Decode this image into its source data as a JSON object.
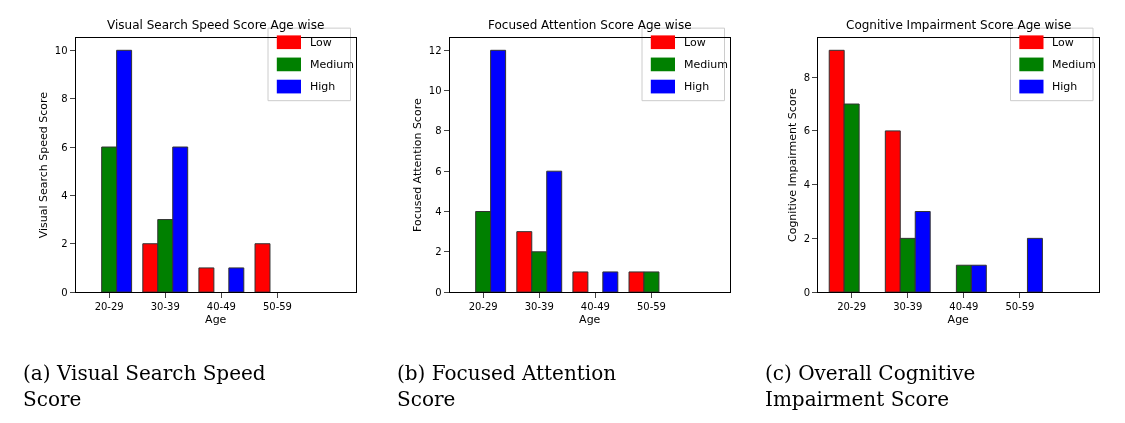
{
  "chart_data": [
    {
      "type": "bar",
      "title": "Visual Search Speed Score Age wise",
      "xlabel": "Age",
      "ylabel": "Visual Search Speed Score",
      "categories": [
        "20-29",
        "30-39",
        "40-49",
        "50-59"
      ],
      "series": [
        {
          "name": "Low",
          "color": "#ff0000",
          "values": [
            0,
            2,
            1,
            2
          ]
        },
        {
          "name": "Medium",
          "color": "#008000",
          "values": [
            6,
            3,
            0,
            0
          ]
        },
        {
          "name": "High",
          "color": "#0000ff",
          "values": [
            10,
            6,
            1,
            0
          ]
        }
      ],
      "ylim": [
        0,
        10.5
      ],
      "yticks": [
        0,
        2,
        4,
        6,
        8,
        10
      ],
      "legend": "top right",
      "grid": false,
      "annotations": [
        "(a) Visual Search Speed Score"
      ]
    },
    {
      "type": "bar",
      "title": "Focused Attention Score Age wise",
      "xlabel": "Age",
      "ylabel": "Focused Attention Score",
      "categories": [
        "20-29",
        "30-39",
        "40-49",
        "50-59"
      ],
      "series": [
        {
          "name": "Low",
          "color": "#ff0000",
          "values": [
            0,
            3,
            1,
            1
          ]
        },
        {
          "name": "Medium",
          "color": "#008000",
          "values": [
            4,
            2,
            0,
            1
          ]
        },
        {
          "name": "High",
          "color": "#0000ff",
          "values": [
            12,
            6,
            1,
            0
          ]
        }
      ],
      "ylim": [
        0,
        12.6
      ],
      "yticks": [
        0,
        2,
        4,
        6,
        8,
        10,
        12
      ],
      "legend": "top right",
      "grid": false,
      "annotations": [
        "(b) Focused Attention Score"
      ]
    },
    {
      "type": "bar",
      "title": "Cognitive Impairment Score Age wise",
      "xlabel": "Age",
      "ylabel": "Cognitive Impairment Score",
      "categories": [
        "20-29",
        "30-39",
        "40-49",
        "50-59"
      ],
      "series": [
        {
          "name": "Low",
          "color": "#ff0000",
          "values": [
            9,
            6,
            0,
            0
          ]
        },
        {
          "name": "Medium",
          "color": "#008000",
          "values": [
            7,
            2,
            1,
            0
          ]
        },
        {
          "name": "High",
          "color": "#0000ff",
          "values": [
            0,
            3,
            1,
            2
          ]
        }
      ],
      "ylim": [
        0,
        9.45
      ],
      "yticks": [
        0,
        2,
        4,
        6,
        8
      ],
      "legend": "top right",
      "grid": false,
      "annotations": [
        "(c) Overall Cognitive Impairment Score"
      ]
    }
  ]
}
